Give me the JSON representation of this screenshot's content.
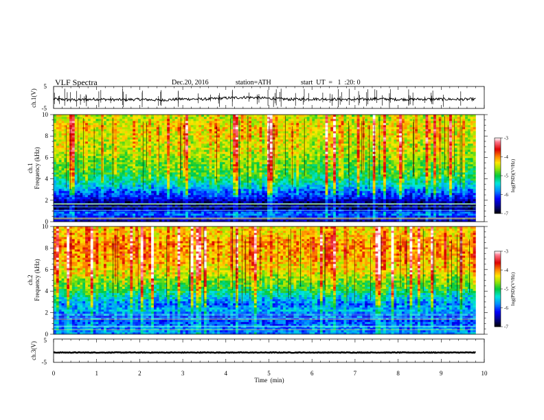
{
  "header": {
    "title": "VLF  Spectra",
    "date": "Dec.20, 2016",
    "station": "station=ATH",
    "start": "start  UT  =   1  :20: 0"
  },
  "colors": {
    "spectrogram_low": "#00008b",
    "spectrogram_mid": "#00c000",
    "spectrogram_high": "#ff0000",
    "trace": "#000000"
  },
  "chart_data": [
    {
      "type": "line",
      "name": "ch1-waveform",
      "ylabel": "ch.1(V)",
      "ylim": [
        -5,
        5
      ],
      "yticks": [
        "5",
        "-5"
      ],
      "x": [
        0,
        0.5,
        1,
        1.5,
        2,
        2.5,
        3,
        3.5,
        4,
        4.5,
        5,
        5.5,
        6,
        6.5,
        7,
        7.5,
        8,
        8.5,
        9,
        9.5,
        9.8
      ],
      "y": [
        -0.8,
        -1.3,
        -0.9,
        -1.2,
        -1.0,
        -1.4,
        -0.8,
        -0.9,
        -0.3,
        0.1,
        -0.5,
        -1.0,
        -0.8,
        -0.9,
        -1.1,
        -0.7,
        -1.0,
        -0.9,
        -0.9,
        -1.0,
        -0.9
      ]
    },
    {
      "type": "heatmap",
      "name": "ch1-spectrogram",
      "ylabel": "ch.1\nFrequency  (kHz)",
      "xlim": [
        0,
        10
      ],
      "ylim": [
        0,
        10
      ],
      "yticks": [
        "0",
        "2",
        "4",
        "6",
        "8",
        "10"
      ],
      "data_time_end": 9.8,
      "freq_kHz": [
        0.25,
        0.75,
        1.25,
        1.75,
        2.25,
        2.75,
        3.25,
        3.75,
        4.25,
        4.75,
        5.25,
        5.75,
        6.25,
        6.75,
        7.25,
        7.75,
        8.25,
        8.75,
        9.25,
        9.75
      ],
      "log_psd": [
        -6.5,
        -5.8,
        -6.6,
        -6.7,
        -6.2,
        -6.0,
        -5.6,
        -5.3,
        -5.0,
        -4.9,
        -4.8,
        -4.7,
        -4.6,
        -4.5,
        -4.5,
        -4.4,
        -4.4,
        -4.3,
        -4.4,
        -4.5
      ],
      "colorbar": {
        "label": "log(PSD)(V²/Hz)",
        "range": [
          -7,
          -3
        ],
        "ticks": [
          "-3",
          "-4",
          "-5",
          "-6",
          "-7"
        ]
      }
    },
    {
      "type": "heatmap",
      "name": "ch2-spectrogram",
      "ylabel": "ch.2\nFrequency  (kHz)",
      "xlim": [
        0,
        10
      ],
      "ylim": [
        0,
        10
      ],
      "yticks": [
        "0",
        "2",
        "4",
        "6",
        "8",
        "10"
      ],
      "data_time_end": 9.8,
      "freq_kHz": [
        0.25,
        0.75,
        1.25,
        1.75,
        2.25,
        2.75,
        3.25,
        3.75,
        4.25,
        4.75,
        5.25,
        5.75,
        6.25,
        6.75,
        7.25,
        7.75,
        8.25,
        8.75,
        9.25,
        9.75
      ],
      "log_psd": [
        -5.8,
        -5.9,
        -6.0,
        -6.0,
        -5.6,
        -5.9,
        -5.6,
        -5.3,
        -5.0,
        -4.8,
        -4.6,
        -4.4,
        -4.3,
        -4.2,
        -4.1,
        -4.1,
        -4.0,
        -4.1,
        -4.2,
        -4.3
      ],
      "colorbar": {
        "label": "log(PSD)(V²/Hz)",
        "range": [
          -7,
          -3
        ],
        "ticks": [
          "-3",
          "-4",
          "-5",
          "-6",
          "-7"
        ]
      }
    },
    {
      "type": "line",
      "name": "ch3-waveform",
      "ylabel": "ch.3(V)",
      "ylim": [
        -5,
        5
      ],
      "yticks": [
        "5",
        "-5"
      ],
      "x": [
        0,
        0.5,
        1,
        1.5,
        2,
        2.5,
        3,
        3.5,
        4,
        4.5,
        5,
        5.5,
        6,
        6.5,
        7,
        7.5,
        8,
        8.5,
        9,
        9.5,
        9.8
      ],
      "y": [
        -0.9,
        -0.9,
        -0.9,
        -0.9,
        -0.9,
        -0.9,
        -0.9,
        -0.9,
        -0.9,
        -0.9,
        -0.9,
        -0.9,
        -0.9,
        -0.9,
        -0.9,
        -0.9,
        -0.9,
        -0.9,
        -0.9,
        -0.9,
        -0.9
      ]
    }
  ],
  "time_axis": {
    "xlabel": "Time  (min)",
    "ticks": [
      "0",
      "1",
      "2",
      "3",
      "4",
      "5",
      "6",
      "7",
      "8",
      "9",
      "10"
    ]
  }
}
